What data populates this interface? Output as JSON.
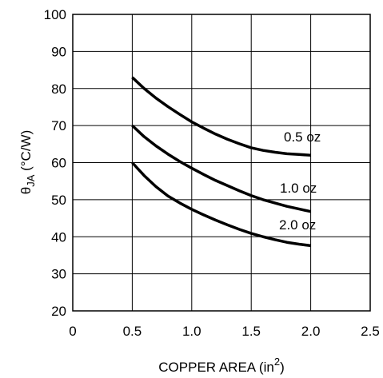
{
  "chart_data": {
    "type": "line",
    "title": "",
    "xlabel": {
      "text": "COPPER AREA (in",
      "superscript": "2",
      "suffix": ")"
    },
    "ylabel": {
      "symbol": "θ",
      "subscript": "JA",
      "unit": " (°C/W)"
    },
    "xlim": [
      0,
      2.5
    ],
    "ylim": [
      20,
      100
    ],
    "xticks": [
      0,
      0.5,
      1.0,
      1.5,
      2.0,
      2.5
    ],
    "xtick_labels": [
      "0",
      "0.5",
      "1.0",
      "1.5",
      "2.0",
      "2.5"
    ],
    "yticks": [
      20,
      30,
      40,
      50,
      60,
      70,
      80,
      90,
      100
    ],
    "ytick_labels": [
      "20",
      "30",
      "40",
      "50",
      "60",
      "70",
      "80",
      "90",
      "100"
    ],
    "grid": true,
    "line_color": "#000000",
    "series": [
      {
        "name": "0.5 oz",
        "x": [
          0.5,
          0.6,
          0.7,
          0.8,
          0.9,
          1.0,
          1.1,
          1.2,
          1.3,
          1.4,
          1.5,
          1.6,
          1.7,
          1.8,
          1.9,
          2.0
        ],
        "y": [
          83,
          80,
          77.4,
          75.1,
          73.0,
          71.0,
          69.3,
          67.7,
          66.3,
          65.1,
          64.0,
          63.3,
          62.8,
          62.4,
          62.2,
          62.0
        ]
      },
      {
        "name": "1.0 oz",
        "x": [
          0.5,
          0.6,
          0.7,
          0.8,
          0.9,
          1.0,
          1.1,
          1.2,
          1.3,
          1.4,
          1.5,
          1.6,
          1.7,
          1.8,
          1.9,
          2.0
        ],
        "y": [
          70,
          67,
          64.5,
          62.3,
          60.3,
          58.5,
          56.8,
          55.2,
          53.8,
          52.4,
          51.1,
          50.0,
          49.1,
          48.2,
          47.5,
          46.8
        ]
      },
      {
        "name": "2.0 oz",
        "x": [
          0.5,
          0.6,
          0.7,
          0.8,
          0.9,
          1.0,
          1.1,
          1.2,
          1.3,
          1.4,
          1.5,
          1.6,
          1.7,
          1.8,
          1.9,
          2.0
        ],
        "y": [
          60,
          56.5,
          53.5,
          51.0,
          49.1,
          47.4,
          45.9,
          44.5,
          43.2,
          42.0,
          40.9,
          40.0,
          39.2,
          38.5,
          38.0,
          37.6
        ]
      }
    ]
  }
}
